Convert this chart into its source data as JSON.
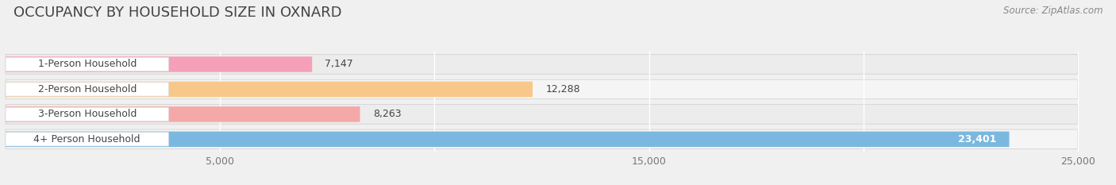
{
  "title": "OCCUPANCY BY HOUSEHOLD SIZE IN OXNARD",
  "source": "Source: ZipAtlas.com",
  "categories": [
    "1-Person Household",
    "2-Person Household",
    "3-Person Household",
    "4+ Person Household"
  ],
  "values": [
    7147,
    12288,
    8263,
    23401
  ],
  "bar_colors": [
    "#f5a0b8",
    "#f7c88a",
    "#f5a8a8",
    "#7ab8e0"
  ],
  "row_bg_colors": [
    "#e8e8ee",
    "#e8e8ee",
    "#e8e8ee",
    "#d0d8e8"
  ],
  "xlim": [
    0,
    25000
  ],
  "xticks": [
    5000,
    15000,
    25000
  ],
  "xticklabels": [
    "5,000",
    "15,000",
    "25,000"
  ],
  "title_fontsize": 13,
  "source_fontsize": 8.5,
  "bar_label_fontsize": 9,
  "category_fontsize": 9,
  "tick_fontsize": 9,
  "bar_height": 0.62,
  "figure_bg": "#f0f0f0",
  "row_bg_odd": "#ececec",
  "row_bg_even": "#f5f5f5",
  "label_box_color": "#ffffff",
  "value_label_color_dark": "#333333",
  "value_label_color_blue_bar": "#ffffff"
}
